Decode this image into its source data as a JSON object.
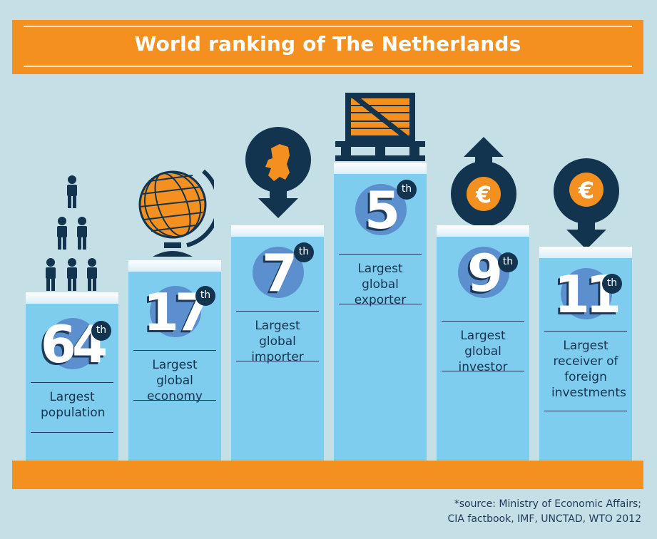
{
  "title": "World ranking of The Netherlands",
  "rankings": [
    {
      "rank": "64",
      "suffix": "th",
      "label": "Largest population",
      "icon": "people-pyramid-icon"
    },
    {
      "rank": "17",
      "suffix": "th",
      "label": "Largest global economy",
      "icon": "globe-icon"
    },
    {
      "rank": "7",
      "suffix": "th",
      "label": "Largest global importer",
      "icon": "netherlands-map-arrow-down-icon"
    },
    {
      "rank": "5",
      "suffix": "th",
      "label": "Largest global exporter",
      "icon": "crate-pallet-icon"
    },
    {
      "rank": "9",
      "suffix": "th",
      "label": "Largest global investor",
      "icon": "euro-arrow-up-icon"
    },
    {
      "rank": "11",
      "suffix": "th",
      "label": "Largest receiver of foreign investments",
      "icon": "euro-arrow-down-icon"
    }
  ],
  "source": {
    "line1": "*source: Ministry of Economic Affairs;",
    "line2": "CIA factbook, IMF, UNCTAD, WTO 2012"
  },
  "colors": {
    "background": "#c4dfe6",
    "orange": "#f39020",
    "column": "#7fcdee",
    "navy": "#12344f",
    "disc": "#5b8fcd"
  }
}
